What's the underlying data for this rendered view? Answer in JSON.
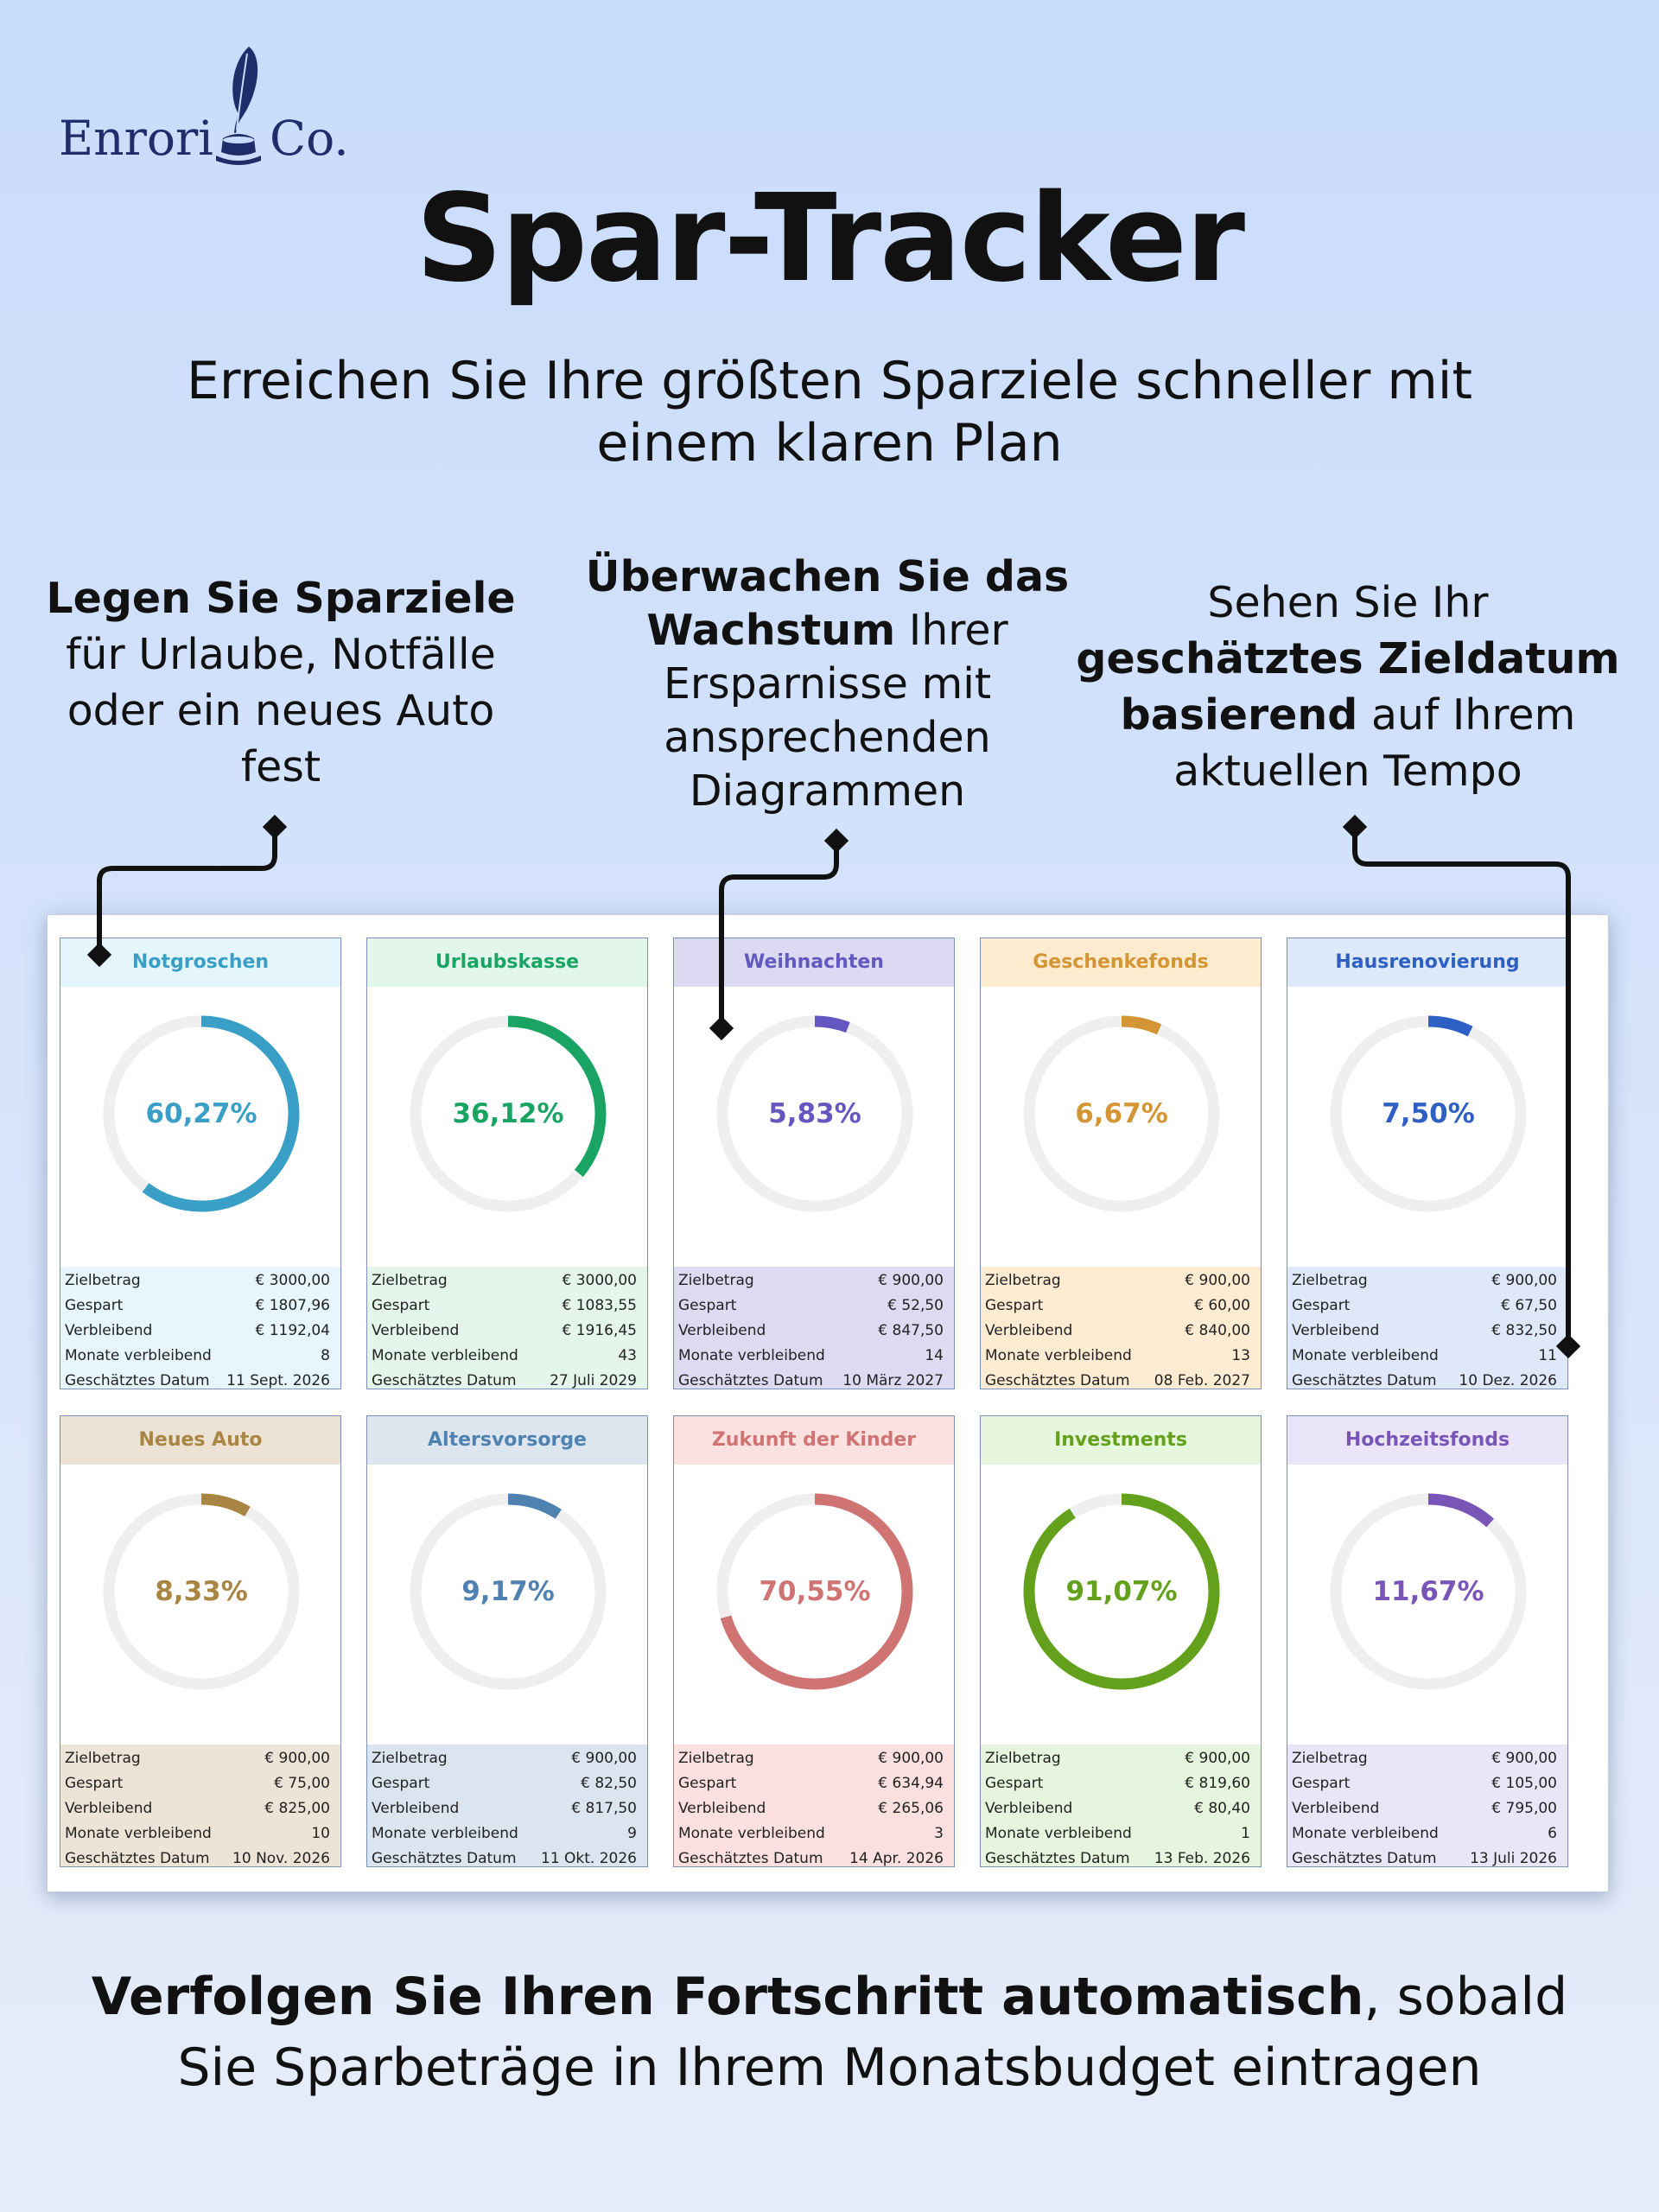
{
  "brand": {
    "left": "Enrori",
    "right": "Co."
  },
  "title": "Spar-Tracker",
  "subtitle": "Erreichen Sie Ihre größten Sparziele schneller mit einem klaren Plan",
  "callouts": [
    {
      "parts": [
        {
          "t": "Legen Sie Sparziele",
          "b": true
        },
        {
          "t": " für Urlaube, Notfälle oder ein neues Auto fest",
          "b": false
        }
      ]
    },
    {
      "parts": [
        {
          "t": "Überwachen Sie das Wachstum",
          "b": true
        },
        {
          "t": " Ihrer Ersparnisse mit ansprechenden Diagrammen",
          "b": false
        }
      ]
    },
    {
      "parts": [
        {
          "t": "Sehen Sie Ihr ",
          "b": false
        },
        {
          "t": "geschätztes Zieldatum basierend",
          "b": true
        },
        {
          "t": " auf Ihrem aktuellen Tempo",
          "b": false
        }
      ]
    }
  ],
  "labels": {
    "target": "Zielbetrag",
    "saved": "Gespart",
    "remaining": "Verbleibend",
    "months": "Monate verbleibend",
    "date": "Geschätztes Datum"
  },
  "goals": [
    {
      "name": "Notgroschen",
      "pct": 0.6027,
      "pct_label": "60,27%",
      "target": "€ 3000,00",
      "saved": "€ 1807,96",
      "remaining": "€ 1192,04",
      "months": "8",
      "date": "11 Sept. 2026",
      "color": "#3a9fc6",
      "head_bg": "#e4f5fc",
      "stats_bg": "#e6f6fc"
    },
    {
      "name": "Urlaubskasse",
      "pct": 0.3612,
      "pct_label": "36,12%",
      "target": "€ 3000,00",
      "saved": "€ 1083,55",
      "remaining": "€ 1916,45",
      "months": "43",
      "date": "27 Juli 2029",
      "color": "#19a463",
      "head_bg": "#e2f6ec",
      "stats_bg": "#e4f6ec"
    },
    {
      "name": "Weihnachten",
      "pct": 0.0583,
      "pct_label": "5,83%",
      "target": "€ 900,00",
      "saved": "€ 52,50",
      "remaining": "€ 847,50",
      "months": "14",
      "date": "10 März 2027",
      "color": "#6457c0",
      "head_bg": "#dcdaf2",
      "stats_bg": "#dddaf1"
    },
    {
      "name": "Geschenkefonds",
      "pct": 0.0667,
      "pct_label": "6,67%",
      "target": "€ 900,00",
      "saved": "€ 60,00",
      "remaining": "€ 840,00",
      "months": "13",
      "date": "08 Feb. 2027",
      "color": "#d49534",
      "head_bg": "#fdebd0",
      "stats_bg": "#fdebd2"
    },
    {
      "name": "Hausrenovierung",
      "pct": 0.075,
      "pct_label": "7,50%",
      "target": "€ 900,00",
      "saved": "€ 67,50",
      "remaining": "€ 832,50",
      "months": "11",
      "date": "10 Dez. 2026",
      "color": "#2e5fc2",
      "head_bg": "#dde8f8",
      "stats_bg": "#dfe8f8"
    },
    {
      "name": "Neues Auto",
      "pct": 0.0833,
      "pct_label": "8,33%",
      "target": "€ 900,00",
      "saved": "€ 75,00",
      "remaining": "€ 825,00",
      "months": "10",
      "date": "10 Nov. 2026",
      "color": "#a98543",
      "head_bg": "#ede3d4",
      "stats_bg": "#ede3d6"
    },
    {
      "name": "Altersvorsorge",
      "pct": 0.0917,
      "pct_label": "9,17%",
      "target": "€ 900,00",
      "saved": "€ 82,50",
      "remaining": "€ 817,50",
      "months": "9",
      "date": "11 Okt. 2026",
      "color": "#4f82b0",
      "head_bg": "#dde6ef",
      "stats_bg": "#dbe5ef"
    },
    {
      "name": "Zukunft der Kinder",
      "pct": 0.7055,
      "pct_label": "70,55%",
      "target": "€ 900,00",
      "saved": "€ 634,94",
      "remaining": "€ 265,06",
      "months": "3",
      "date": "14 Apr. 2026",
      "color": "#d07373",
      "head_bg": "#fce1e1",
      "stats_bg": "#fce0e0"
    },
    {
      "name": "Investments",
      "pct": 0.9107,
      "pct_label": "91,07%",
      "target": "€ 900,00",
      "saved": "€ 819,60",
      "remaining": "€ 80,40",
      "months": "1",
      "date": "13 Feb. 2026",
      "color": "#63a11c",
      "head_bg": "#e7f7de",
      "stats_bg": "#e6f5de"
    },
    {
      "name": "Hochzeitsfonds",
      "pct": 0.1167,
      "pct_label": "11,67%",
      "target": "€ 900,00",
      "saved": "€ 105,00",
      "remaining": "€ 795,00",
      "months": "6",
      "date": "13 Juli 2026",
      "color": "#7a55b8",
      "head_bg": "#ebe5f9",
      "stats_bg": "#ebe5f8"
    }
  ],
  "footer": {
    "bold": "Verfolgen Sie Ihren Fortschritt automatisch",
    "rest": ", sobald Sie Sparbeträge in Ihrem Monatsbudget eintragen"
  }
}
